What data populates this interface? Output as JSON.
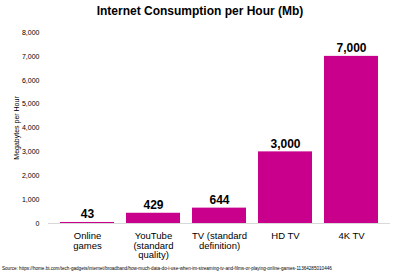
{
  "chart_data": {
    "type": "bar",
    "title": "Internet Consumption per Hour (Mb)",
    "ylabel": "Megabytes per Hour",
    "categories": [
      "Online games",
      "YouTube (standard quality)",
      "TV (standard definition)",
      "HD TV",
      "4K TV"
    ],
    "values": [
      43,
      429,
      644,
      3000,
      7000
    ],
    "value_labels": [
      "43",
      "429",
      "644",
      "3,000",
      "7,000"
    ],
    "data_labels": true,
    "color": "#c8008c",
    "ylim": [
      0,
      8000
    ],
    "yticks": [
      0,
      {
        "value": 1000,
        "label": "1,000"
      },
      {
        "value": 2000,
        "label": "2,000"
      },
      {
        "value": 3000,
        "label": "3,000"
      },
      {
        "value": 4000,
        "label": "4,000"
      },
      {
        "value": 5000,
        "label": "5,000"
      },
      {
        "value": 6000,
        "label": "6,000"
      },
      {
        "value": 7000,
        "label": "7,000"
      },
      {
        "value": 8000,
        "label": "8,000"
      }
    ],
    "grid": false,
    "source": "Source: https://home.bt.com/tech-gadgets/internet/broadband/how-much-data-do-i-use-when-im-streaming-tv-and-films-or-playing-online-games-11364285010446"
  }
}
